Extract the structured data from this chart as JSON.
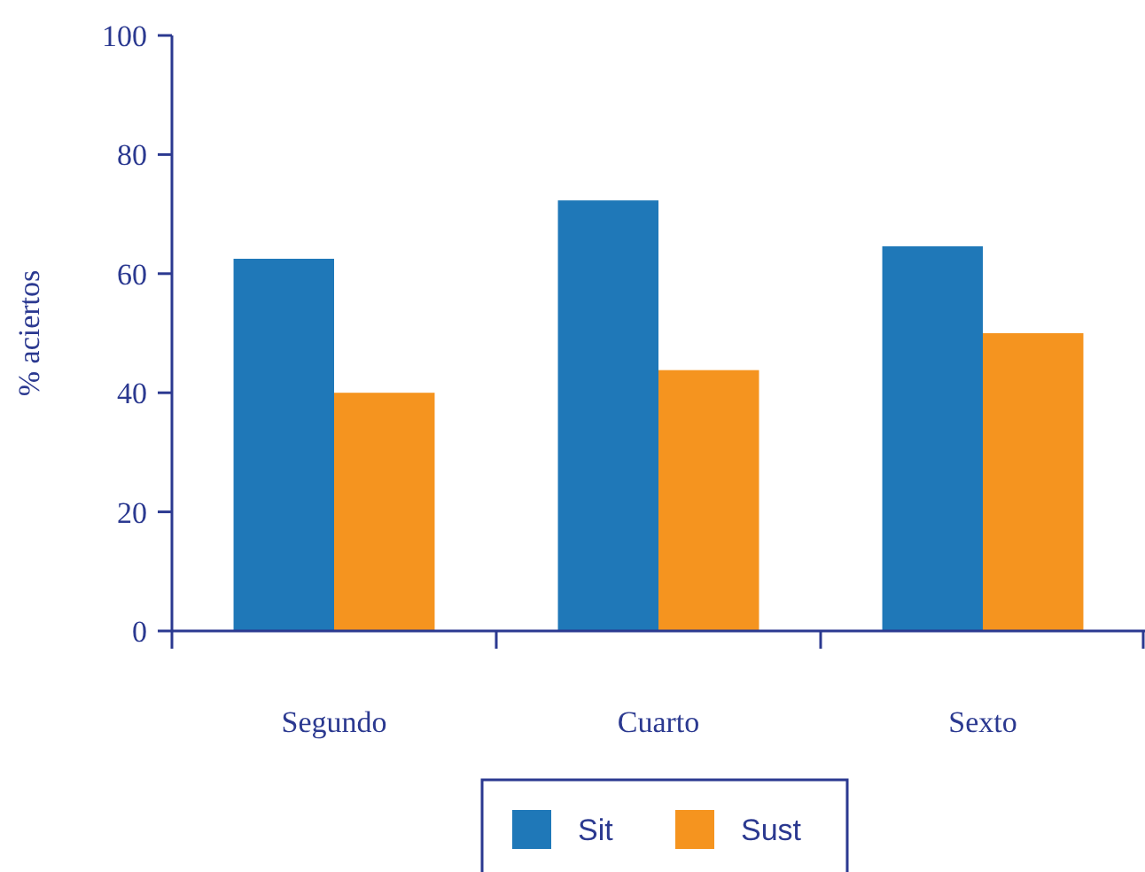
{
  "chart_data": {
    "type": "bar",
    "ylabel": "% aciertos",
    "categories": [
      "Segundo",
      "Cuarto",
      "Sexto"
    ],
    "series": [
      {
        "name": "Sit",
        "color": "#1f78b8",
        "values": [
          62.5,
          72.3,
          64.6
        ]
      },
      {
        "name": "Sust",
        "color": "#f5941f",
        "values": [
          40,
          43.8,
          50
        ]
      }
    ],
    "ylim": [
      0,
      100
    ],
    "yticks": [
      0,
      20,
      40,
      60,
      80,
      100
    ],
    "grid": false,
    "legend": "bottom"
  }
}
